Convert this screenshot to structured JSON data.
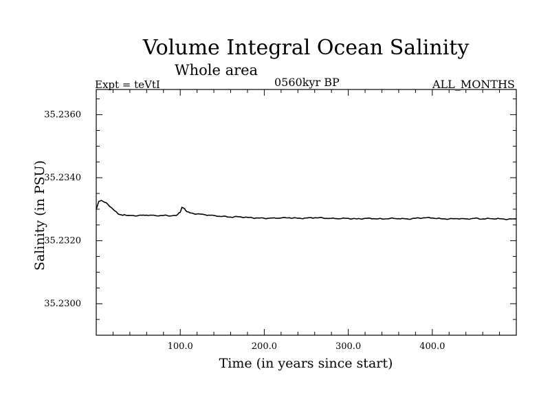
{
  "chart_data": {
    "type": "line",
    "title": "Volume Integral Ocean Salinity",
    "subtitle": "Whole area",
    "annotations": {
      "experiment": "Expt = teVtI",
      "period": "0560kyr BP",
      "months": "ALL_MONTHS"
    },
    "xlabel": "Time (in years since start)",
    "ylabel": "Salinity (in PSU)",
    "xlim": [
      0,
      500
    ],
    "ylim": [
      35.229,
      35.2368
    ],
    "x_ticks": [
      100,
      200,
      300,
      400
    ],
    "x_tick_labels": [
      "100.0",
      "200.0",
      "300.0",
      "400.0"
    ],
    "y_ticks": [
      35.23,
      35.232,
      35.234,
      35.236
    ],
    "y_tick_labels": [
      "35.2300",
      "35.2320",
      "35.2340",
      "35.2360"
    ],
    "grid": false,
    "series": [
      {
        "color": "#000000",
        "x": [
          0,
          3,
          6,
          10,
          14,
          18,
          22,
          26,
          30,
          35,
          40,
          50,
          60,
          70,
          80,
          90,
          95,
          100,
          102,
          105,
          108,
          112,
          120,
          130,
          140,
          150,
          160,
          170,
          180,
          190,
          200,
          210,
          220,
          230,
          240,
          250,
          260,
          270,
          280,
          290,
          300,
          310,
          320,
          330,
          340,
          350,
          360,
          370,
          380,
          390,
          400,
          410,
          420,
          430,
          440,
          450,
          460,
          470,
          480,
          490,
          500
        ],
        "values": [
          35.233,
          35.23325,
          35.23328,
          35.23322,
          35.23315,
          35.23305,
          35.23295,
          35.23285,
          35.23282,
          35.23281,
          35.2328,
          35.2328,
          35.23281,
          35.2328,
          35.2328,
          35.23279,
          35.2328,
          35.2329,
          35.23306,
          35.23302,
          35.23292,
          35.23288,
          35.23285,
          35.23282,
          35.2328,
          35.23277,
          35.23275,
          35.23276,
          35.23274,
          35.23272,
          35.23271,
          35.23272,
          35.23272,
          35.23273,
          35.23271,
          35.23272,
          35.23273,
          35.23272,
          35.23271,
          35.2327,
          35.23271,
          35.23269,
          35.23271,
          35.2327,
          35.23269,
          35.23271,
          35.2327,
          35.23269,
          35.23271,
          35.23273,
          35.23272,
          35.2327,
          35.23269,
          35.2327,
          35.23269,
          35.23271,
          35.23269,
          35.2327,
          35.2327,
          35.23268,
          35.23269
        ]
      }
    ]
  }
}
